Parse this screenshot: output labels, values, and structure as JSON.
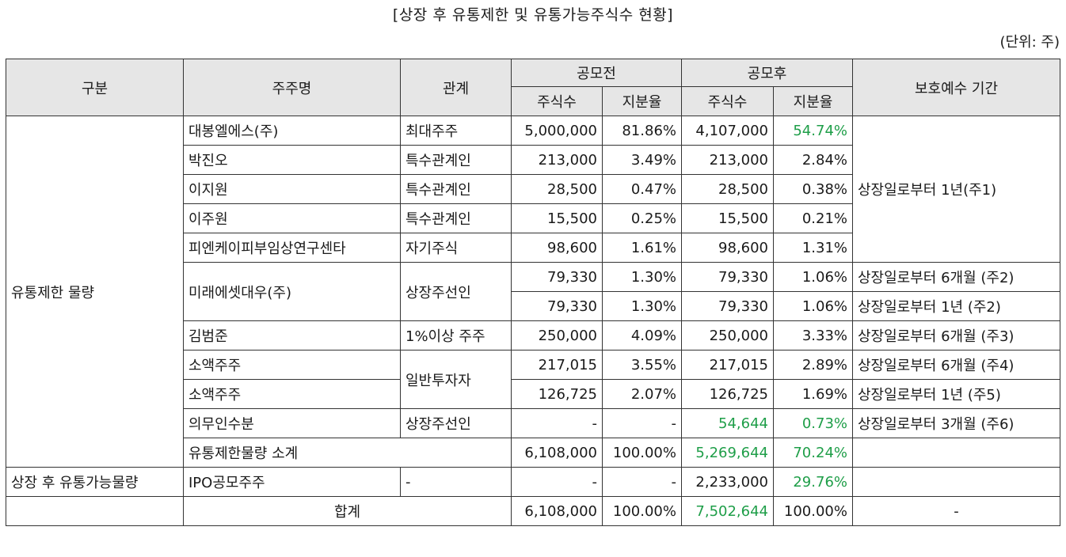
{
  "title": "[상장 후 유통제한 및 유통가능주식수 현황]",
  "unit": "(단위: 주)",
  "headers": {
    "category": "구분",
    "holder": "주주명",
    "relation": "관계",
    "pre_ipo": "공모전",
    "post_ipo": "공모후",
    "shares": "주식수",
    "ratio": "지분율",
    "lockup": "보호예수 기간"
  },
  "groups": {
    "restricted": "유통제한 물량",
    "tradable": "상장 후 유통가능물량"
  },
  "rows": [
    {
      "holder": "대봉엘에스(주)",
      "relation": "최대주주",
      "pre_shares": "5,000,000",
      "pre_ratio": "81.86%",
      "post_shares": "4,107,000",
      "post_ratio": "54.74%",
      "lockup": "상장일로부터 1년(주1)"
    },
    {
      "holder": "박진오",
      "relation": "특수관계인",
      "pre_shares": "213,000",
      "pre_ratio": "3.49%",
      "post_shares": "213,000",
      "post_ratio": "2.84%"
    },
    {
      "holder": "이지원",
      "relation": "특수관계인",
      "pre_shares": "28,500",
      "pre_ratio": "0.47%",
      "post_shares": "28,500",
      "post_ratio": "0.38%"
    },
    {
      "holder": "이주원",
      "relation": "특수관계인",
      "pre_shares": "15,500",
      "pre_ratio": "0.25%",
      "post_shares": "15,500",
      "post_ratio": "0.21%"
    },
    {
      "holder": "피엔케이피부임상연구센타",
      "relation": "자기주식",
      "pre_shares": "98,600",
      "pre_ratio": "1.61%",
      "post_shares": "98,600",
      "post_ratio": "1.31%"
    },
    {
      "holder": "미래에셋대우(주)",
      "relation": "상장주선인",
      "pre_shares": "79,330",
      "pre_ratio": "1.30%",
      "post_shares": "79,330",
      "post_ratio": "1.06%",
      "lockup": "상장일로부터 6개월 (주2)"
    },
    {
      "pre_shares": "79,330",
      "pre_ratio": "1.30%",
      "post_shares": "79,330",
      "post_ratio": "1.06%",
      "lockup": "상장일로부터 1년 (주2)"
    },
    {
      "holder": "김범준",
      "relation": "1%이상 주주",
      "pre_shares": "250,000",
      "pre_ratio": "4.09%",
      "post_shares": "250,000",
      "post_ratio": "3.33%",
      "lockup": "상장일로부터 6개월 (주3)"
    },
    {
      "holder": "소액주주",
      "relation": "일반투자자",
      "pre_shares": "217,015",
      "pre_ratio": "3.55%",
      "post_shares": "217,015",
      "post_ratio": "2.89%",
      "lockup": "상장일로부터 6개월 (주4)"
    },
    {
      "holder": "소액주주",
      "pre_shares": "126,725",
      "pre_ratio": "2.07%",
      "post_shares": "126,725",
      "post_ratio": "1.69%",
      "lockup": "상장일로부터 1년 (주5)"
    },
    {
      "holder": "의무인수분",
      "relation": "상장주선인",
      "pre_shares": "-",
      "pre_ratio": "-",
      "post_shares": "54,644",
      "post_ratio": "0.73%",
      "lockup": "상장일로부터 3개월 (주6)"
    }
  ],
  "subtotal": {
    "label": "유통제한물량 소계",
    "pre_shares": "6,108,000",
    "pre_ratio": "100.00%",
    "post_shares": "5,269,644",
    "post_ratio": "70.24%"
  },
  "tradable_row": {
    "holder": "IPO공모주주",
    "relation": "-",
    "pre_shares": "-",
    "pre_ratio": "-",
    "post_shares": "2,233,000",
    "post_ratio": "29.76%"
  },
  "total": {
    "label": "합계",
    "pre_shares": "6,108,000",
    "pre_ratio": "100.00%",
    "post_shares": "7,502,644",
    "post_ratio": "100.00%",
    "lockup": "-"
  },
  "colors": {
    "highlight": "#1e9e48",
    "header_bg": "#e6e6e6",
    "border": "#333333"
  }
}
